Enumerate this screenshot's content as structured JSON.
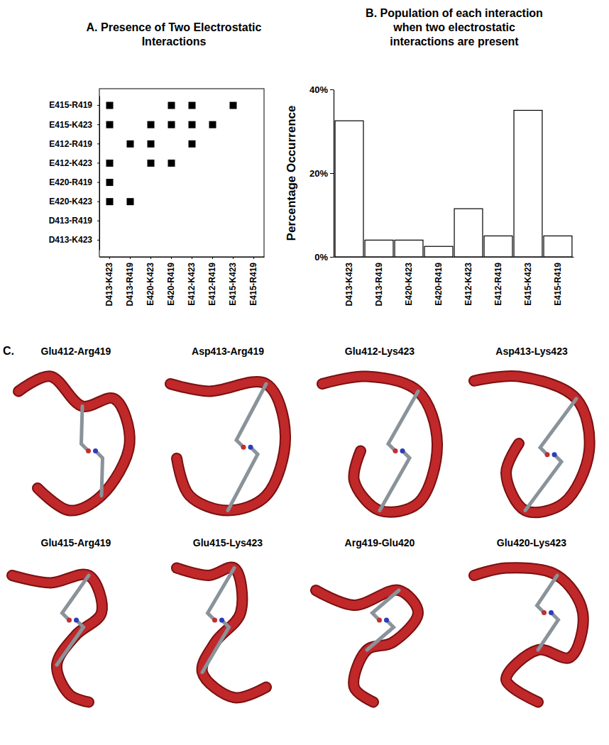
{
  "chart_data": [
    {
      "type": "scatter",
      "title": [
        "A. Presence of Two Electrostatic",
        "Interactions"
      ],
      "x_categories": [
        "D413-K423",
        "D413-R419",
        "E420-K423",
        "E420-R419",
        "E412-K423",
        "E412-R419",
        "E415-K423",
        "E415-R419"
      ],
      "y_categories": [
        "E415-R419",
        "E415-K423",
        "E412-R419",
        "E412-K423",
        "E420-R419",
        "E420-K423",
        "D413-R419",
        "D413-K423"
      ],
      "points": [
        {
          "x": "D413-K423",
          "y": "E415-R419"
        },
        {
          "x": "E420-R419",
          "y": "E415-R419"
        },
        {
          "x": "E412-K423",
          "y": "E415-R419"
        },
        {
          "x": "E415-K423",
          "y": "E415-R419"
        },
        {
          "x": "D413-K423",
          "y": "E415-K423"
        },
        {
          "x": "E420-K423",
          "y": "E415-K423"
        },
        {
          "x": "E420-R419",
          "y": "E415-K423"
        },
        {
          "x": "E412-K423",
          "y": "E415-K423"
        },
        {
          "x": "E412-R419",
          "y": "E415-K423"
        },
        {
          "x": "D413-R419",
          "y": "E412-R419"
        },
        {
          "x": "E420-K423",
          "y": "E412-R419"
        },
        {
          "x": "E412-K423",
          "y": "E412-R419"
        },
        {
          "x": "D413-K423",
          "y": "E412-K423"
        },
        {
          "x": "E420-K423",
          "y": "E412-K423"
        },
        {
          "x": "E420-R419",
          "y": "E412-K423"
        },
        {
          "x": "D413-K423",
          "y": "E420-R419"
        },
        {
          "x": "D413-K423",
          "y": "E420-K423"
        },
        {
          "x": "D413-R419",
          "y": "E420-K423"
        }
      ],
      "marker": "square",
      "color": "#000000"
    },
    {
      "type": "bar",
      "title": [
        "B. Population of each interaction",
        "when two electrostatic",
        "interactions are present"
      ],
      "y_label": "Percentage Occurrence",
      "categories": [
        "D413-K423",
        "D413-R419",
        "E420-K423",
        "E420-R419",
        "E412-K423",
        "E412-R419",
        "E415-K423",
        "E415-R419"
      ],
      "values": [
        32.5,
        4,
        4,
        2.5,
        11.5,
        5,
        35,
        5
      ],
      "color": "#ffffff",
      "ylim": [
        0,
        40
      ],
      "yticks": [
        {
          "value": 0,
          "label": "0%"
        },
        {
          "value": 20,
          "label": "20%"
        },
        {
          "value": 40,
          "label": "40%"
        }
      ]
    }
  ],
  "panel_c": {
    "label": "C.",
    "structures": [
      "Glu412-Arg419",
      "Asp413-Arg419",
      "Glu412-Lys423",
      "Asp413-Lys423",
      "Glu415-Arg419",
      "Glu415-Lys423",
      "Arg419-Glu420",
      "Glu420-Lys423"
    ]
  }
}
